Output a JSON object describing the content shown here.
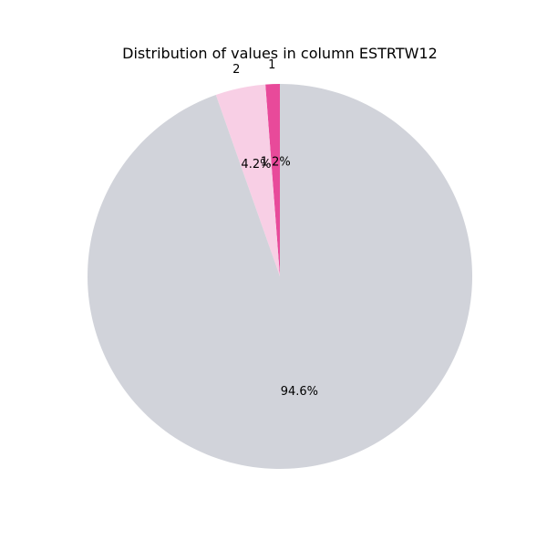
{
  "chart_data": {
    "type": "pie",
    "title": "Distribution of values in column ESTRTW12",
    "slices": [
      {
        "label": "1",
        "value": 1.2,
        "pct_label": "1.2%",
        "color": "#e84a9a"
      },
      {
        "label": "2",
        "value": 4.2,
        "pct_label": "4.2%",
        "color": "#f8cfe5"
      },
      {
        "label": "",
        "value": 94.6,
        "pct_label": "94.6%",
        "color": "#d1d3da"
      }
    ],
    "start_angle_deg": 90,
    "direction": "counterclockwise",
    "legend": "none"
  }
}
